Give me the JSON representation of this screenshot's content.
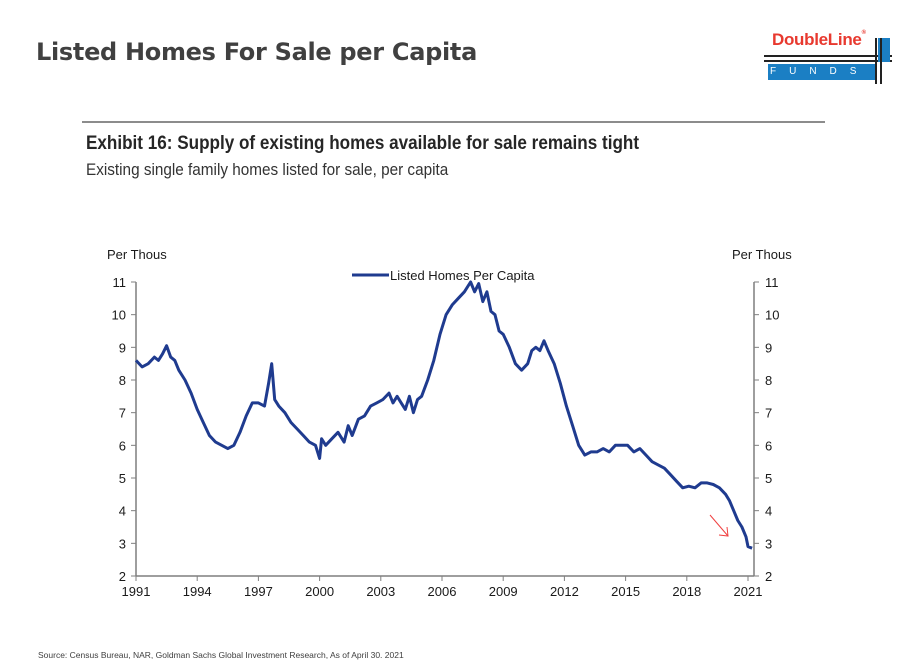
{
  "page": {
    "title": "Listed Homes For Sale per Capita",
    "source": "Source: Census Bureau, NAR, Goldman Sachs Global Investment Research, As of April 30. 2021"
  },
  "logo": {
    "name": "DoubleLine",
    "reg": "®",
    "sub": "FUNDS",
    "colors": {
      "red": "#e8392f",
      "blue": "#1b7fc4"
    }
  },
  "exhibit": {
    "title": "Exhibit 16: Supply of existing homes available for sale remains tight",
    "subtitle": "Existing single family homes listed for sale, per capita"
  },
  "chart_data": {
    "type": "line",
    "title": "Exhibit 16: Supply of existing homes available for sale remains tight",
    "subtitle": "Existing single family homes listed for sale, per capita",
    "xlabel": "",
    "ylabel_left": "Per Thous",
    "ylabel_right": "Per Thous",
    "ylim": [
      2,
      11
    ],
    "xlim": [
      1991,
      2021.2
    ],
    "yticks": [
      2,
      3,
      4,
      5,
      6,
      7,
      8,
      9,
      10,
      11
    ],
    "xticks": [
      "1991",
      "1994",
      "1997",
      "2000",
      "2003",
      "2006",
      "2009",
      "2012",
      "2015",
      "2018",
      "2021"
    ],
    "grid": false,
    "legend": {
      "position": "top-center",
      "entries": [
        "Listed Homes Per Capita"
      ]
    },
    "line_color": "#1f3b8f",
    "annotation": {
      "type": "arrow",
      "color": "#f04040",
      "description": "downward arrow pointing at recent decline"
    },
    "series": [
      {
        "name": "Listed Homes Per Capita",
        "x": [
          1991.0,
          1991.3,
          1991.6,
          1991.9,
          1992.1,
          1992.3,
          1992.5,
          1992.7,
          1992.9,
          1993.1,
          1993.4,
          1993.7,
          1994.0,
          1994.3,
          1994.6,
          1994.9,
          1995.2,
          1995.5,
          1995.8,
          1996.1,
          1996.4,
          1996.7,
          1997.0,
          1997.3,
          1997.5,
          1997.65,
          1997.8,
          1998.0,
          1998.3,
          1998.6,
          1998.9,
          1999.2,
          1999.5,
          1999.8,
          2000.0,
          2000.1,
          2000.3,
          2000.6,
          2000.9,
          2001.2,
          2001.4,
          2001.6,
          2001.9,
          2002.2,
          2002.5,
          2002.8,
          2003.1,
          2003.4,
          2003.6,
          2003.8,
          2004.0,
          2004.2,
          2004.4,
          2004.6,
          2004.8,
          2005.0,
          2005.3,
          2005.6,
          2005.9,
          2006.2,
          2006.5,
          2006.8,
          2007.1,
          2007.4,
          2007.6,
          2007.8,
          2008.0,
          2008.2,
          2008.4,
          2008.6,
          2008.8,
          2009.0,
          2009.3,
          2009.6,
          2009.9,
          2010.2,
          2010.4,
          2010.6,
          2010.8,
          2011.0,
          2011.2,
          2011.5,
          2011.8,
          2012.1,
          2012.4,
          2012.7,
          2013.0,
          2013.3,
          2013.6,
          2013.9,
          2014.2,
          2014.5,
          2014.8,
          2015.1,
          2015.4,
          2015.7,
          2016.0,
          2016.3,
          2016.6,
          2016.9,
          2017.2,
          2017.5,
          2017.8,
          2018.1,
          2018.4,
          2018.7,
          2019.0,
          2019.3,
          2019.6,
          2019.9,
          2020.1,
          2020.3,
          2020.5,
          2020.7,
          2020.9,
          2021.0,
          2021.2
        ],
        "y": [
          8.6,
          8.4,
          8.5,
          8.7,
          8.6,
          8.8,
          9.05,
          8.7,
          8.6,
          8.3,
          8.0,
          7.6,
          7.1,
          6.7,
          6.3,
          6.1,
          6.0,
          5.9,
          6.0,
          6.4,
          6.9,
          7.3,
          7.3,
          7.2,
          7.9,
          8.5,
          7.4,
          7.2,
          7.0,
          6.7,
          6.5,
          6.3,
          6.1,
          6.0,
          5.6,
          6.2,
          6.0,
          6.2,
          6.4,
          6.1,
          6.6,
          6.3,
          6.8,
          6.9,
          7.2,
          7.3,
          7.4,
          7.6,
          7.3,
          7.5,
          7.3,
          7.1,
          7.5,
          7.0,
          7.4,
          7.5,
          8.0,
          8.6,
          9.4,
          10.0,
          10.3,
          10.5,
          10.7,
          11.0,
          10.7,
          10.95,
          10.4,
          10.7,
          10.1,
          10.0,
          9.5,
          9.4,
          9.0,
          8.5,
          8.3,
          8.5,
          8.9,
          9.0,
          8.9,
          9.2,
          8.9,
          8.5,
          7.9,
          7.2,
          6.6,
          6.0,
          5.7,
          5.8,
          5.8,
          5.9,
          5.8,
          6.0,
          6.0,
          6.0,
          5.8,
          5.9,
          5.7,
          5.5,
          5.4,
          5.3,
          5.1,
          4.9,
          4.7,
          4.75,
          4.7,
          4.85,
          4.85,
          4.8,
          4.7,
          4.5,
          4.3,
          4.0,
          3.7,
          3.5,
          3.2,
          2.9,
          2.85
        ]
      }
    ]
  }
}
